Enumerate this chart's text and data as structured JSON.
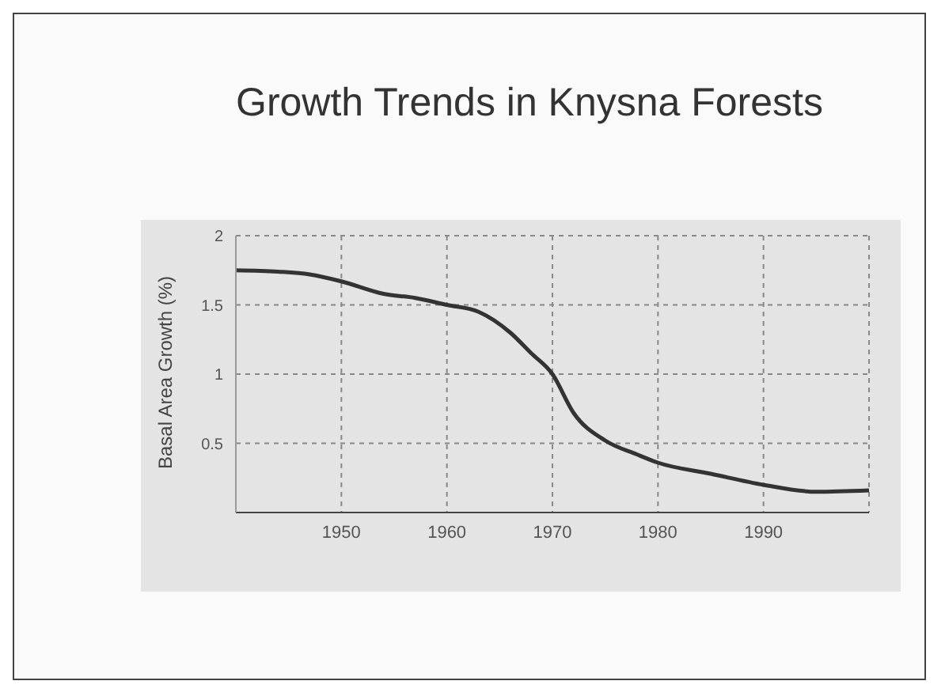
{
  "chart_data": {
    "type": "line",
    "title": "Growth Trends in Knysna Forests",
    "ylabel": "Basal Area Growth (%)",
    "x": [
      1940,
      1944,
      1947,
      1950,
      1954,
      1957,
      1960,
      1963,
      1966,
      1968,
      1970,
      1972,
      1975,
      1978,
      1980,
      1985,
      1990,
      1995,
      2000
    ],
    "series": [
      {
        "color": "#333333",
        "values": [
          1.75,
          1.74,
          1.72,
          1.67,
          1.58,
          1.55,
          1.5,
          1.45,
          1.3,
          1.15,
          1.0,
          0.72,
          0.52,
          0.42,
          0.36,
          0.28,
          0.2,
          0.15,
          0.16
        ]
      }
    ],
    "xlim": [
      1940,
      2000
    ],
    "xticks": [
      1950,
      1960,
      1970,
      1980,
      1990
    ],
    "ylim": [
      0,
      2
    ],
    "yticks": [
      0.5,
      1,
      1.5,
      2
    ],
    "grid": true,
    "marker": "none",
    "line_style": "solid"
  }
}
